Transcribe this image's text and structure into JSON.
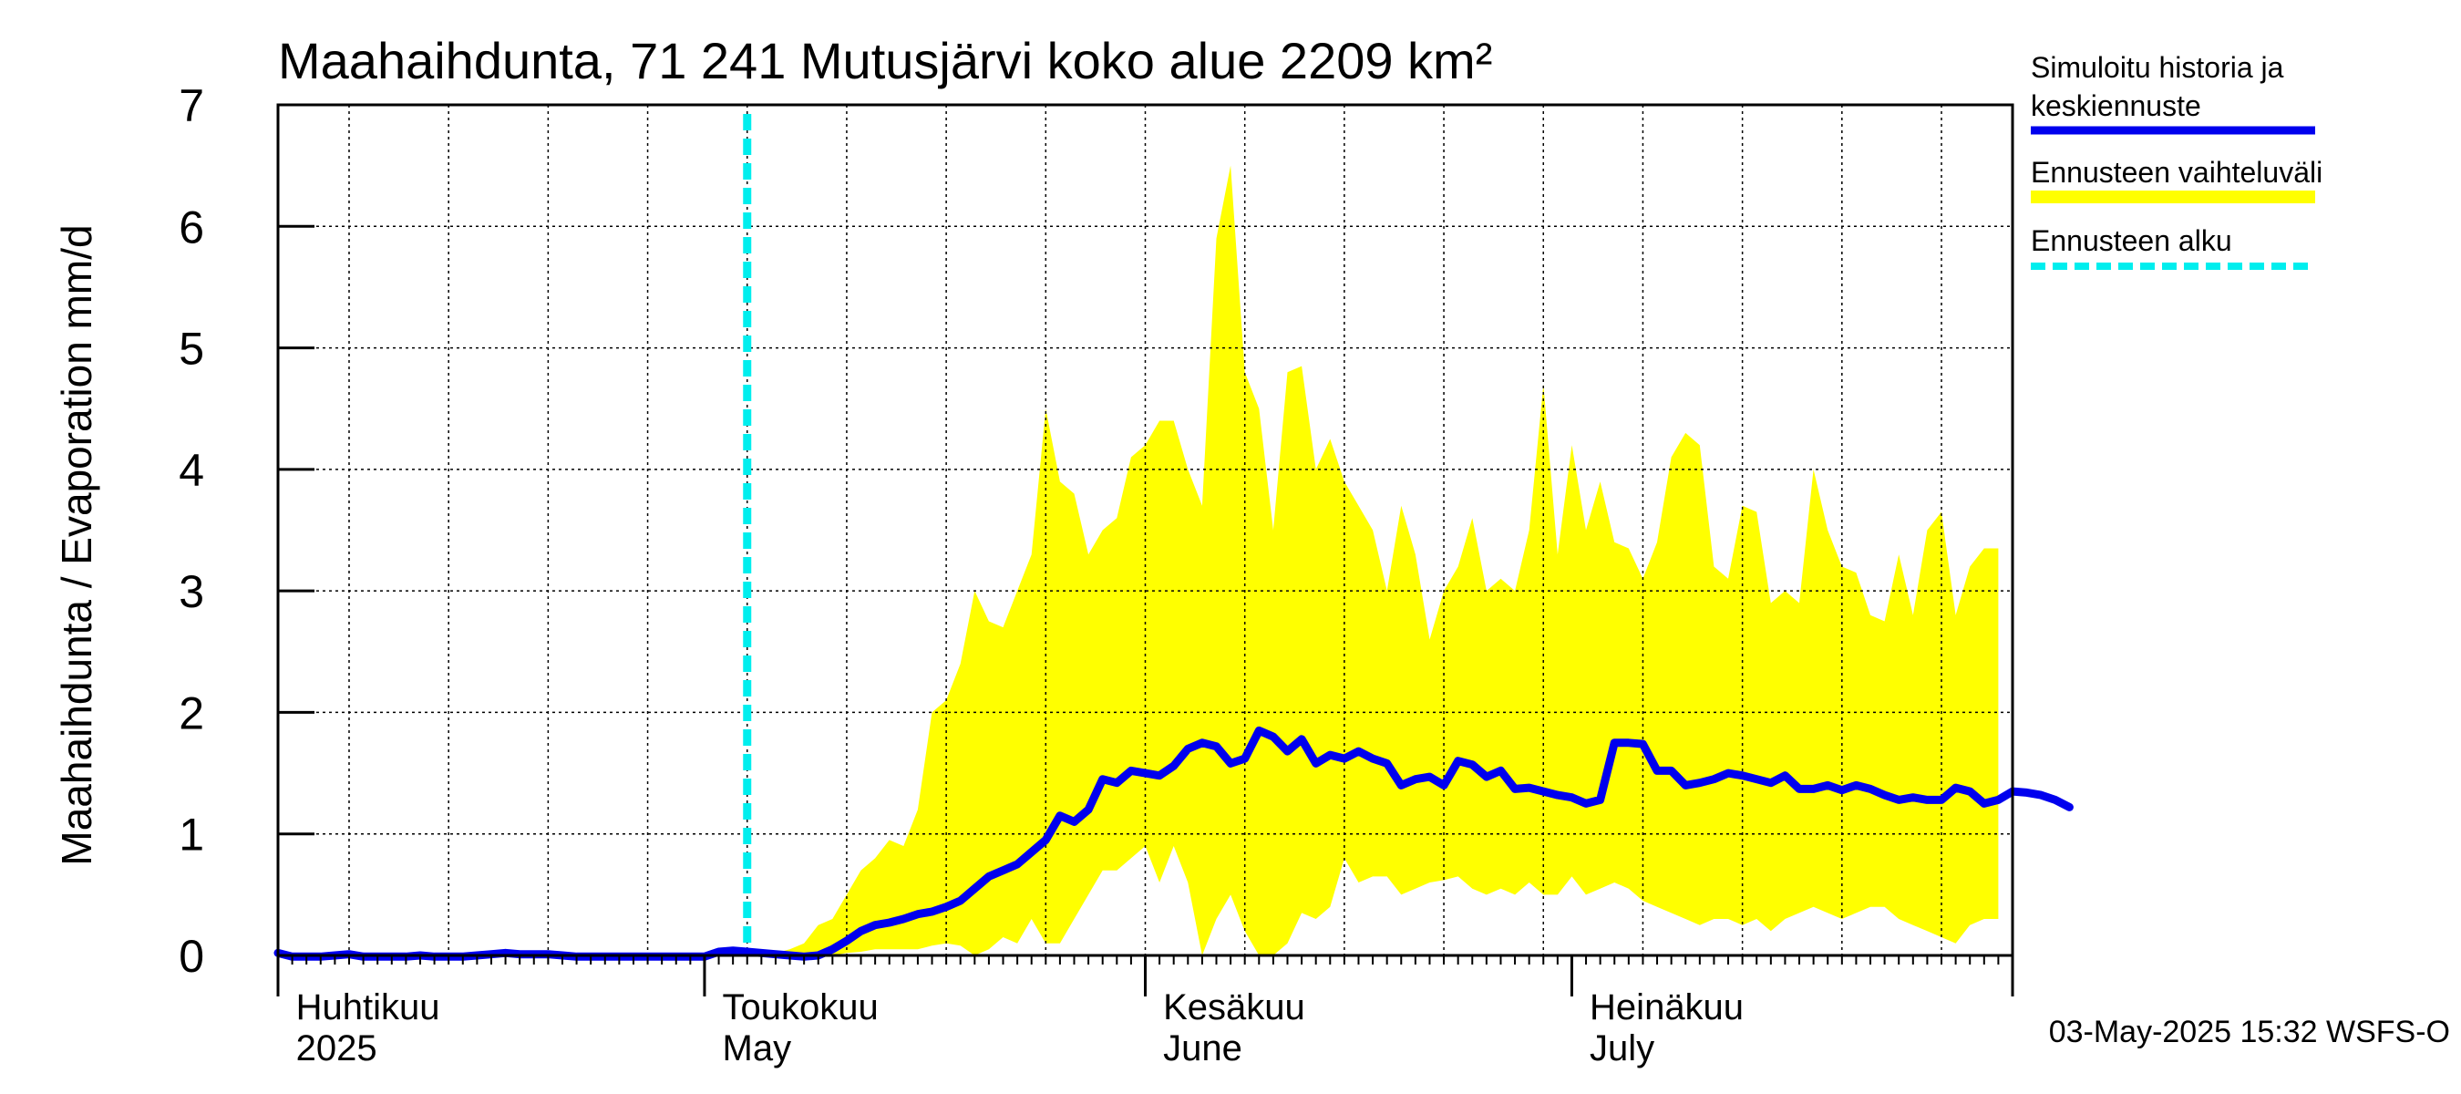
{
  "chart_data": {
    "type": "line",
    "title": "Maahaihdunta, 71 241 Mutusjärvi koko alue 2209 km²",
    "ylabel": "Maahaihdunta / Evaporation   mm/d",
    "ylim": [
      0,
      7
    ],
    "yticks": [
      0,
      1,
      2,
      3,
      4,
      5,
      6,
      7
    ],
    "grid": true,
    "x_range": [
      "2025-03-31",
      "2025-07-31"
    ],
    "x_axis_labels": [
      {
        "date": "2025-04-01",
        "line1": "Huhtikuu",
        "line2": "2025"
      },
      {
        "date": "2025-05-01",
        "line1": "Toukokuu",
        "line2": "May"
      },
      {
        "date": "2025-06-01",
        "line1": "Kesäkuu",
        "line2": "June"
      },
      {
        "date": "2025-07-01",
        "line1": "Heinäkuu",
        "line2": "July"
      }
    ],
    "forecast_start": "2025-05-03",
    "legend": {
      "placement": "right",
      "items": [
        {
          "label_lines": [
            "Simuloitu historia ja",
            "keskiennuste"
          ],
          "color": "#0000ee",
          "style": "solid"
        },
        {
          "label_lines": [
            "Ennusteen vaihteluväli"
          ],
          "color": "#ffff00",
          "style": "band"
        },
        {
          "label_lines": [
            "Ennusteen alku"
          ],
          "color": "#00eeee",
          "style": "dashed"
        }
      ]
    },
    "footer": "03-May-2025 15:32 WSFS-O",
    "band_start": "2025-05-03",
    "band_upper": [
      0.02,
      0.02,
      0.02,
      0.05,
      0.1,
      0.25,
      0.3,
      0.5,
      0.7,
      0.8,
      0.95,
      0.9,
      1.2,
      2.0,
      2.1,
      2.4,
      3.0,
      2.75,
      2.7,
      3.0,
      3.3,
      4.5,
      3.9,
      3.8,
      3.3,
      3.5,
      3.6,
      4.1,
      4.2,
      4.4,
      4.4,
      4.0,
      3.7,
      5.9,
      6.5,
      4.8,
      4.5,
      3.5,
      4.8,
      4.85,
      4.0,
      4.25,
      3.9,
      3.7,
      3.5,
      3.0,
      3.7,
      3.3,
      2.6,
      3.0,
      3.2,
      3.6,
      3.0,
      3.1,
      3.0,
      3.5,
      4.7,
      3.3,
      4.2,
      3.5,
      3.9,
      3.4,
      3.35,
      3.1,
      3.4,
      4.1,
      4.3,
      4.2,
      3.2,
      3.1,
      3.7,
      3.65,
      2.9,
      3.0,
      2.9,
      4.0,
      3.5,
      3.2,
      3.15,
      2.8,
      2.75,
      3.3,
      2.8,
      3.5,
      3.65,
      2.8,
      3.2,
      3.35,
      3.35
    ],
    "band_lower": [
      0.0,
      0.0,
      0.0,
      0.0,
      0.0,
      0.0,
      0.0,
      0.02,
      0.03,
      0.05,
      0.05,
      0.05,
      0.05,
      0.08,
      0.1,
      0.08,
      -0.05,
      0.05,
      0.15,
      0.1,
      0.3,
      0.1,
      0.1,
      0.3,
      0.5,
      0.7,
      0.7,
      0.8,
      0.9,
      0.6,
      0.9,
      0.6,
      0.0,
      0.3,
      0.5,
      0.2,
      0.0,
      0.0,
      0.1,
      0.35,
      0.3,
      0.4,
      0.8,
      0.6,
      0.65,
      0.65,
      0.5,
      0.55,
      0.6,
      0.62,
      0.65,
      0.55,
      0.5,
      0.55,
      0.5,
      0.6,
      0.5,
      0.5,
      0.65,
      0.5,
      0.55,
      0.6,
      0.55,
      0.45,
      0.4,
      0.35,
      0.3,
      0.25,
      0.3,
      0.3,
      0.25,
      0.3,
      0.2,
      0.3,
      0.35,
      0.4,
      0.35,
      0.3,
      0.35,
      0.4,
      0.4,
      0.3,
      0.25,
      0.2,
      0.15,
      0.1,
      0.25,
      0.3,
      0.3
    ],
    "series": [
      {
        "name": "Simuloitu historia ja keskiennuste",
        "color": "#0000ee",
        "start": "2025-03-31",
        "values": [
          0.02,
          -0.01,
          -0.01,
          -0.01,
          0.0,
          0.01,
          -0.01,
          -0.01,
          -0.01,
          -0.01,
          0.0,
          -0.01,
          -0.01,
          -0.01,
          0.0,
          0.01,
          0.02,
          0.01,
          0.01,
          0.01,
          0.0,
          -0.01,
          -0.01,
          -0.01,
          -0.01,
          -0.01,
          -0.01,
          -0.01,
          -0.01,
          -0.01,
          -0.01,
          0.03,
          0.04,
          0.03,
          0.02,
          0.01,
          0.0,
          -0.01,
          0.0,
          0.05,
          0.12,
          0.2,
          0.25,
          0.27,
          0.3,
          0.34,
          0.36,
          0.4,
          0.45,
          0.55,
          0.65,
          0.7,
          0.75,
          0.85,
          0.95,
          1.15,
          1.1,
          1.2,
          1.45,
          1.42,
          1.52,
          1.5,
          1.48,
          1.56,
          1.7,
          1.75,
          1.72,
          1.58,
          1.62,
          1.85,
          1.8,
          1.68,
          1.78,
          1.58,
          1.65,
          1.62,
          1.68,
          1.62,
          1.58,
          1.4,
          1.45,
          1.47,
          1.4,
          1.6,
          1.57,
          1.47,
          1.52,
          1.37,
          1.38,
          1.35,
          1.32,
          1.3,
          1.25,
          1.28,
          1.75,
          1.75,
          1.74,
          1.52,
          1.52,
          1.4,
          1.42,
          1.45,
          1.5,
          1.48,
          1.45,
          1.42,
          1.48,
          1.37,
          1.37,
          1.4,
          1.36,
          1.4,
          1.37,
          1.32,
          1.28,
          1.3,
          1.28,
          1.28,
          1.38,
          1.35,
          1.25,
          1.28,
          1.35,
          1.34,
          1.32,
          1.28,
          1.22
        ]
      }
    ]
  }
}
